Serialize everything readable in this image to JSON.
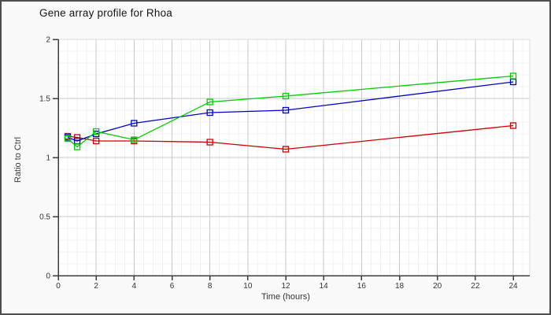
{
  "chart_data": {
    "type": "line",
    "title": "Gene array profile for Rhoa",
    "xlabel": "Time (hours)",
    "ylabel": "Ratio to Ctrl",
    "x": [
      0.5,
      1,
      2,
      4,
      8,
      12,
      24
    ],
    "series": [
      {
        "name": "red",
        "color": "#cc0000",
        "values": [
          1.18,
          1.17,
          1.14,
          1.14,
          1.13,
          1.07,
          1.27
        ]
      },
      {
        "name": "blue",
        "color": "#0000cc",
        "values": [
          1.17,
          1.14,
          1.2,
          1.29,
          1.38,
          1.4,
          1.64
        ]
      },
      {
        "name": "green",
        "color": "#00cc00",
        "values": [
          1.16,
          1.09,
          1.22,
          1.15,
          1.47,
          1.52,
          1.69
        ]
      }
    ],
    "xlim": [
      0,
      24.87
    ],
    "ylim": [
      0,
      2
    ],
    "x_ticks": [
      0,
      2,
      4,
      6,
      8,
      10,
      12,
      14,
      16,
      18,
      20,
      22,
      24
    ],
    "y_ticks": [
      2,
      1.5,
      1,
      0.5,
      0
    ],
    "x_minor_step": 0.5,
    "y_minor_step": 0.1,
    "grid": true,
    "legend": "none",
    "marker": "open-square"
  },
  "colors": {
    "page_background": "#f9f9f9",
    "plot_background": "#ffffff",
    "grid_minor": "#f0f0f0",
    "grid_major": "#c9c9c9",
    "plot_border": "#dcdcdc",
    "axis": "#3c3c3c",
    "tick_text": "#333333",
    "figure_border": "#4e4e4e"
  }
}
